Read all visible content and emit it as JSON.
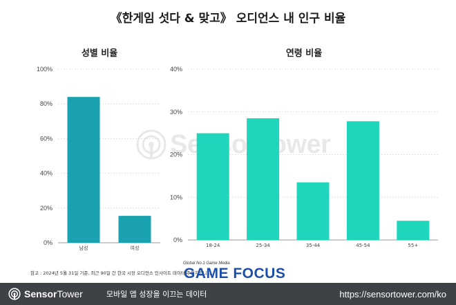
{
  "title": "《한게임 섯다 & 맞고》 오디언스 내 인구 비율",
  "footnote": "참고 : 2024년 5월 31일 기준, 최근 90일 간 한국 시장 오디언스 인사이트 데이터 추정치입니다.",
  "watermark": {
    "text": "SensorTower",
    "icon": "sensor-tower-logo-icon"
  },
  "overlay_logo": {
    "tagline": "Global No.1 Game Media",
    "name": "GAME FOCUS"
  },
  "footer": {
    "brand_bold": "Sensor",
    "brand_rest": "Tower",
    "brand_icon": "sensor-tower-logo-icon",
    "tagline": "모바일 앱 성장을 이끄는 데이터",
    "url": "https://sensortower.com/ko"
  },
  "chart_data": [
    {
      "type": "bar",
      "title": "성별 비율",
      "categories": [
        "남성",
        "여성"
      ],
      "values": [
        84,
        15.5
      ],
      "ylim": [
        0,
        100
      ],
      "yticks": [
        "0%",
        "20%",
        "40%",
        "60%",
        "80%",
        "100%"
      ],
      "ytick_values": [
        0,
        20,
        40,
        60,
        80,
        100
      ],
      "grid": true,
      "color": "#1aa2b0"
    },
    {
      "type": "bar",
      "title": "연령 비율",
      "categories": [
        "18-24",
        "25-34",
        "35-44",
        "45-54",
        "55+"
      ],
      "values": [
        25,
        28.5,
        13.5,
        27.8,
        4.5
      ],
      "ylim": [
        0,
        40
      ],
      "yticks": [
        "0%",
        "10%",
        "20%",
        "30%",
        "40%"
      ],
      "ytick_values": [
        0,
        10,
        20,
        30,
        40
      ],
      "grid": true,
      "color": "#1fd6bc"
    }
  ]
}
